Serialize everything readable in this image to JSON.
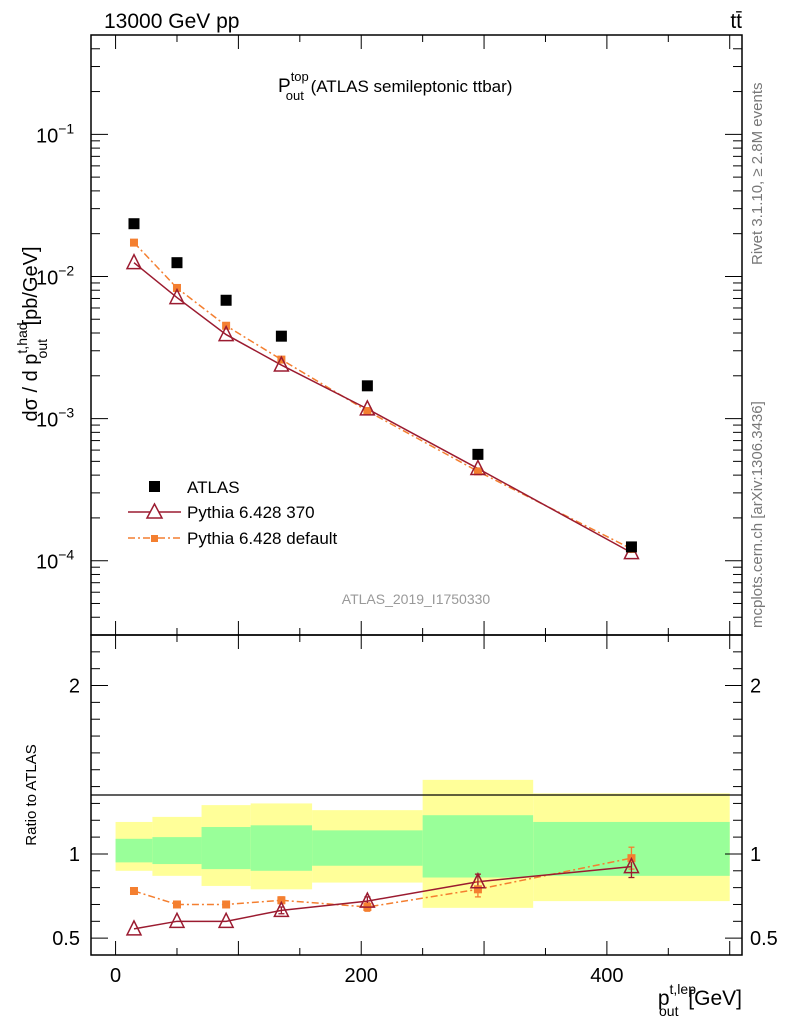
{
  "header": {
    "energy_label": "13000 GeV pp",
    "process_label": "tt̄"
  },
  "side_labels": {
    "rivet": "Rivet 3.1.10, ≥ 2.8M events",
    "mcplots": "mcplots.cern.ch [arXiv:1306.3436]"
  },
  "chart_data": [
    {
      "type": "scatter",
      "panel": "main",
      "title_main": "P",
      "title_sup": "top",
      "title_sub": "out",
      "title_rest": " (ATLAS semileptonic ttbar)",
      "ylabel_prefix": "dσ / d p",
      "ylabel_sup": "t,had",
      "ylabel_sub": "out",
      "ylabel_suffix": " [pb/GeV]",
      "yscale": "log",
      "xlim": [
        -20,
        510
      ],
      "ylim": [
        3e-05,
        0.5
      ],
      "y_tick_labels": [
        {
          "value": 0.1,
          "base": "10",
          "exp": "−1"
        },
        {
          "value": 0.01,
          "base": "10",
          "exp": "−2"
        },
        {
          "value": 0.001,
          "base": "10",
          "exp": "−3"
        },
        {
          "value": 0.0001,
          "base": "10",
          "exp": "−4"
        }
      ],
      "watermark": "ATLAS_2019_I1750330",
      "legend_position": "lower-left",
      "series": [
        {
          "name": "ATLAS",
          "color": "#000000",
          "marker": "square",
          "x": [
            15,
            50,
            90,
            135,
            205,
            295,
            420
          ],
          "y": [
            0.0235,
            0.0125,
            0.0068,
            0.0038,
            0.0017,
            0.00056,
            0.000125
          ]
        },
        {
          "name": "Pythia 6.428 370",
          "color": "#9b1b30",
          "marker": "open-triangle",
          "line": "solid",
          "x": [
            15,
            50,
            90,
            135,
            205,
            295,
            420
          ],
          "y": [
            0.0125,
            0.0071,
            0.0039,
            0.00238,
            0.00117,
            0.000445,
            0.000114
          ]
        },
        {
          "name": "Pythia 6.428 default",
          "color": "#f47f30",
          "marker": "small-square",
          "line": "dashdot",
          "x": [
            15,
            50,
            90,
            135,
            205,
            295,
            420
          ],
          "y": [
            0.0173,
            0.0083,
            0.0045,
            0.0026,
            0.00113,
            0.000425,
            0.000121
          ]
        }
      ]
    },
    {
      "type": "scatter",
      "panel": "ratio",
      "ylabel": "Ratio to ATLAS",
      "xlabel_main": "p",
      "xlabel_sup": "t,lep",
      "xlabel_sub": "out",
      "xlabel_suffix": " [GeV]",
      "xlim": [
        -20,
        510
      ],
      "ylim": [
        0.4,
        2.3
      ],
      "x_ticks": [
        0,
        200,
        400
      ],
      "x_tick_labels": [
        "0",
        "200",
        "400"
      ],
      "y_ticks": [
        0.5,
        1,
        2
      ],
      "y_tick_labels": [
        "0.5",
        "1",
        "2"
      ],
      "bands": [
        {
          "x0": 0,
          "x1": 30,
          "inner": [
            0.95,
            1.09
          ],
          "outer": [
            0.9,
            1.19
          ]
        },
        {
          "x0": 30,
          "x1": 70,
          "inner": [
            0.94,
            1.1
          ],
          "outer": [
            0.87,
            1.22
          ]
        },
        {
          "x0": 70,
          "x1": 110,
          "inner": [
            0.91,
            1.16
          ],
          "outer": [
            0.81,
            1.29
          ]
        },
        {
          "x0": 110,
          "x1": 160,
          "inner": [
            0.9,
            1.17
          ],
          "outer": [
            0.79,
            1.3
          ]
        },
        {
          "x0": 160,
          "x1": 250,
          "inner": [
            0.93,
            1.14
          ],
          "outer": [
            0.83,
            1.26
          ]
        },
        {
          "x0": 250,
          "x1": 340,
          "inner": [
            0.86,
            1.23
          ],
          "outer": [
            0.68,
            1.44
          ]
        },
        {
          "x0": 340,
          "x1": 500,
          "inner": [
            0.87,
            1.19
          ],
          "outer": [
            0.72,
            1.36
          ]
        }
      ],
      "series": [
        {
          "name": "Pythia 6.428 370",
          "color": "#9b1b30",
          "x": [
            15,
            50,
            90,
            135,
            205,
            295,
            420
          ],
          "y": [
            0.555,
            0.6,
            0.6,
            0.665,
            0.72,
            0.835,
            0.925
          ],
          "yerr": [
            0,
            0,
            0,
            0.02,
            0.025,
            0.045,
            0.065
          ]
        },
        {
          "name": "Pythia 6.428 default",
          "color": "#f47f30",
          "x": [
            15,
            50,
            90,
            135,
            205,
            295,
            420
          ],
          "y": [
            0.78,
            0.7,
            0.7,
            0.725,
            0.685,
            0.79,
            0.975
          ],
          "yerr": [
            0,
            0.01,
            0.015,
            0.02,
            0.025,
            0.045,
            0.065
          ]
        }
      ]
    }
  ]
}
